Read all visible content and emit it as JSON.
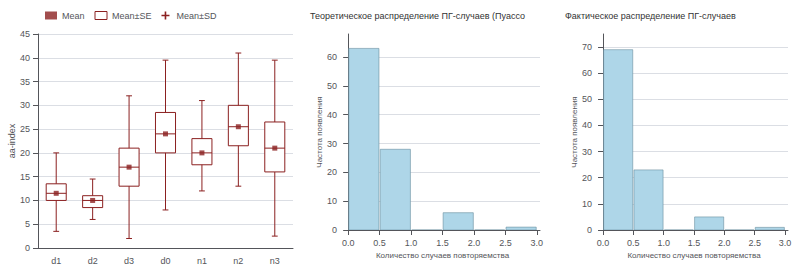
{
  "chart_data": [
    {
      "type": "box",
      "ylabel": "aa-index",
      "categories": [
        "d1",
        "d2",
        "d3",
        "d0",
        "n1",
        "n2",
        "n3"
      ],
      "ylim": [
        0,
        45
      ],
      "yticks": [
        0,
        5,
        10,
        15,
        20,
        25,
        30,
        35,
        40,
        45
      ],
      "grid": true,
      "legend": "top",
      "series": [
        {
          "name": "Mean",
          "type": "scatter",
          "marker": "square",
          "color": "#8b2020",
          "values": [
            11.5,
            10.0,
            17.0,
            24.0,
            20.0,
            25.5,
            21.0
          ]
        },
        {
          "name": "Mean±SE",
          "type": "box",
          "color": "#8b2020",
          "low": [
            10.0,
            8.5,
            13.0,
            20.0,
            17.5,
            21.5,
            16.0
          ],
          "high": [
            13.5,
            11.0,
            21.0,
            28.5,
            23.0,
            30.0,
            26.5
          ],
          "median": [
            11.5,
            10.0,
            17.0,
            24.0,
            20.0,
            25.5,
            21.0
          ]
        },
        {
          "name": "Mean±SD",
          "type": "whisker",
          "color": "#8b2020",
          "low": [
            3.5,
            6.0,
            2.0,
            8.0,
            12.0,
            13.0,
            2.5
          ],
          "high": [
            20.0,
            14.5,
            32.0,
            39.5,
            31.0,
            41.0,
            39.5
          ]
        }
      ]
    },
    {
      "type": "histogram",
      "title": "Теоретическое распределение ПГ-случаев (Пуассо",
      "xlabel": "Количество случаев повторяемства",
      "ylabel": "Частота появления",
      "bins": [
        0,
        0.5,
        1,
        1.5,
        2,
        2.5,
        3
      ],
      "values": [
        63,
        28,
        0,
        6,
        0,
        1
      ],
      "color": "#aed6e8",
      "xlim": [
        -0.05,
        3.05
      ],
      "xticks": [
        {
          "value": 0,
          "label": "0.0"
        },
        0.5,
        {
          "value": 1,
          "label": "1.0"
        },
        1.5,
        {
          "value": 2,
          "label": "2.0"
        },
        2.5,
        {
          "value": 3,
          "label": "3.0"
        }
      ],
      "ylim": [
        0,
        68
      ],
      "yticks": [
        0,
        10,
        20,
        30,
        40,
        50,
        60
      ],
      "grid": true
    },
    {
      "type": "histogram",
      "title": "Фактическое распределение ПГ-случаев",
      "xlabel": "Количество случаев повторяемства",
      "ylabel": "Частота появления",
      "bins": [
        0,
        0.5,
        1,
        1.5,
        2,
        2.5,
        3
      ],
      "values": [
        69,
        23,
        0,
        5,
        0,
        1
      ],
      "color": "#aed6e8",
      "xlim": [
        -0.05,
        3.05
      ],
      "xticks": [
        {
          "value": 0,
          "label": "0.0"
        },
        0.5,
        {
          "value": 1,
          "label": "1.0"
        },
        1.5,
        {
          "value": 2,
          "label": "2.0"
        },
        2.5,
        {
          "value": 3,
          "label": "3.0"
        }
      ],
      "ylim": [
        0,
        75
      ],
      "yticks": [
        0,
        10,
        20,
        30,
        40,
        50,
        60,
        70
      ],
      "grid": true
    }
  ]
}
